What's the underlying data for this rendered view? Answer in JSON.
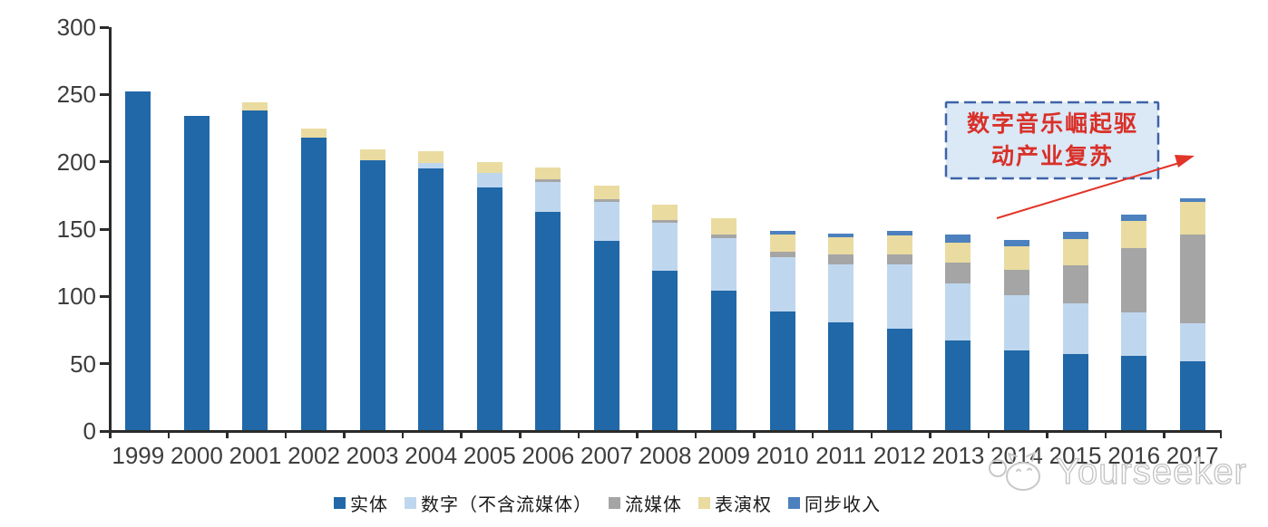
{
  "chart_data": {
    "type": "bar",
    "stacked": true,
    "title": "",
    "xlabel": "",
    "ylabel": "",
    "categories": [
      "1999",
      "2000",
      "2001",
      "2002",
      "2003",
      "2004",
      "2005",
      "2006",
      "2007",
      "2008",
      "2009",
      "2010",
      "2011",
      "2012",
      "2013",
      "2014",
      "2015",
      "2016",
      "2017"
    ],
    "series": [
      {
        "name": "实体",
        "color": "#2068A8",
        "values": [
          252,
          234,
          238,
          218,
          201,
          195,
          181,
          163,
          141,
          119,
          104,
          89,
          81,
          76,
          67,
          60,
          57,
          56,
          52
        ]
      },
      {
        "name": "数字（不含流媒体）",
        "color": "#BFD7EE",
        "values": [
          0,
          0,
          0,
          0,
          0,
          4,
          11,
          22,
          29,
          36,
          39,
          40,
          43,
          48,
          43,
          41,
          38,
          32,
          28
        ]
      },
      {
        "name": "流媒体",
        "color": "#A5A5A5",
        "values": [
          0,
          0,
          0,
          0,
          0,
          0,
          0,
          2,
          2,
          2,
          3,
          4,
          7,
          7,
          15,
          19,
          28,
          48,
          66
        ]
      },
      {
        "name": "表演权",
        "color": "#EADBA0",
        "values": [
          0,
          0,
          6,
          7,
          8,
          9,
          8,
          9,
          10,
          11,
          12,
          13,
          13,
          14,
          15,
          17,
          20,
          20,
          24
        ]
      },
      {
        "name": "同步收入",
        "color": "#4C80BE",
        "values": [
          0,
          0,
          0,
          0,
          0,
          0,
          0,
          0,
          0,
          0,
          0,
          3,
          3,
          4,
          6,
          5,
          5,
          5,
          3
        ]
      }
    ],
    "ylim": [
      0,
      300
    ],
    "yticks": [
      0,
      50,
      100,
      150,
      200,
      250,
      300
    ],
    "grid": false,
    "legend_position": "bottom"
  },
  "annotation": {
    "line1": "数字音乐崛起驱",
    "line2": "动产业复苏",
    "text_color": "#d93028",
    "border_color": "#3d63a8",
    "fill_color": "#dbe8f6",
    "arrow_color": "#e23428"
  },
  "axis": {
    "line_color": "#2b2b2b",
    "label_color": "#3d3d3d"
  },
  "watermark": {
    "text": "Yourseeker",
    "logo": "cat-face-icon",
    "color": "#c8c8c8"
  }
}
